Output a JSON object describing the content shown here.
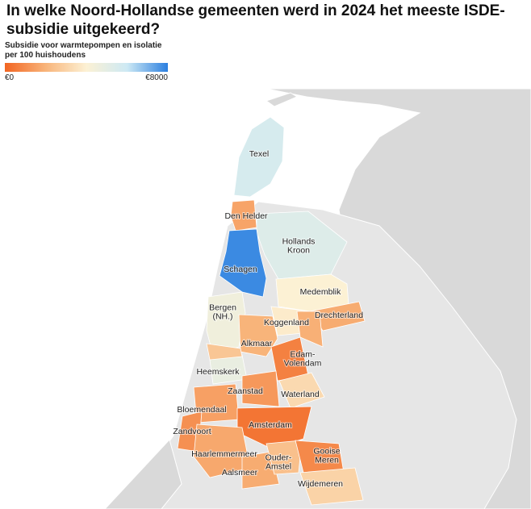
{
  "title": "In welke Noord-Hollandse gemeenten werd in 2024 het meeste ISDE-subsidie uitgekeerd?",
  "legend": {
    "title": "Subsidie voor warmtepompen en isolatie per 100 huishoudens",
    "min": {
      "value": 0,
      "label": "€0"
    },
    "max": {
      "value": 8000,
      "label": "€8000"
    },
    "gradient": [
      "#f26522",
      "#f8b47a",
      "#fcf1d4",
      "#cde9f4",
      "#2b7fe0"
    ]
  },
  "regions": [
    {
      "label": [
        "Texel"
      ],
      "value": 5600
    },
    {
      "label": [
        "Den Helder"
      ],
      "value": 1600
    },
    {
      "label": [
        "Hollands",
        "Kroon"
      ],
      "value": 5300
    },
    {
      "label": [
        "Schagen"
      ],
      "value": 7800
    },
    {
      "label": [
        "Medemblik"
      ],
      "value": 4000
    },
    {
      "label": [
        "Drechterland"
      ],
      "value": 1800
    },
    {
      "label": [
        "Koggenland"
      ],
      "value": 3800
    },
    {
      "label": [
        "Bergen",
        "(NH.)"
      ],
      "value": 4500
    },
    {
      "label": [
        "Alkmaar"
      ],
      "value": 2000
    },
    {
      "label": [
        "Edam-",
        "Volendam"
      ],
      "value": 700
    },
    {
      "label": [
        "Heemskerk"
      ],
      "value": 4800
    },
    {
      "label": [
        "Zaanstad"
      ],
      "value": 1300
    },
    {
      "label": [
        "Waterland"
      ],
      "value": 3200
    },
    {
      "label": [
        "Bloemendaal"
      ],
      "value": 1500
    },
    {
      "label": [
        "Zandvoort"
      ],
      "value": 1100
    },
    {
      "label": [
        "Amsterdam"
      ],
      "value": 400
    },
    {
      "label": [
        "Haarlemmermeer"
      ],
      "value": 1700
    },
    {
      "label": [
        "Aalsmeer"
      ],
      "value": 1800
    },
    {
      "label": [
        "Ouder-",
        "Amstel"
      ],
      "value": 2400
    },
    {
      "label": [
        "Gooise",
        "Meren"
      ],
      "value": 900
    },
    {
      "label": [
        "Wijdemeren"
      ],
      "value": 3000
    },
    {
      "label": null,
      "value": 1900
    },
    {
      "label": null,
      "value": 2600
    }
  ]
}
